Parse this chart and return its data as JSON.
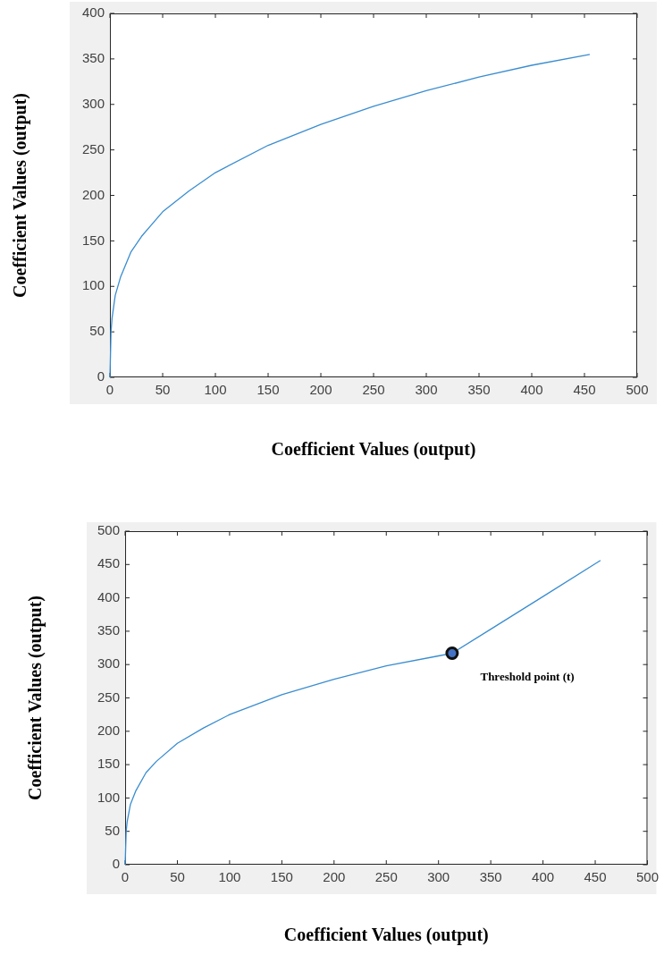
{
  "chart_data": [
    {
      "type": "line",
      "xlabel": "Coefficient Values (output)",
      "ylabel": "Coefficient Values (output)",
      "xlim": [
        0,
        500
      ],
      "xticks": [
        0,
        50,
        100,
        150,
        200,
        250,
        300,
        350,
        400,
        450,
        500
      ],
      "ylim": [
        0,
        400
      ],
      "yticks": [
        0,
        50,
        100,
        150,
        200,
        250,
        300,
        350,
        400
      ],
      "grid": false,
      "legend": false,
      "marker": "none",
      "x": [
        0,
        1,
        2,
        5,
        10,
        20,
        30,
        50,
        75,
        100,
        150,
        200,
        250,
        300,
        350,
        400,
        455
      ],
      "series": [
        {
          "color": "#3a8dd0",
          "values": [
            0,
            50,
            65,
            90,
            110,
            138,
            155,
            182,
            205,
            225,
            255,
            278,
            298,
            315,
            330,
            343,
            355
          ]
        }
      ]
    },
    {
      "type": "line",
      "xlabel": "Coefficient Values (output)",
      "ylabel": "Coefficient Values (output)",
      "xlim": [
        0,
        500
      ],
      "xticks": [
        0,
        50,
        100,
        150,
        200,
        250,
        300,
        350,
        400,
        450,
        500
      ],
      "ylim": [
        0,
        500
      ],
      "yticks": [
        0,
        50,
        100,
        150,
        200,
        250,
        300,
        350,
        400,
        450,
        500
      ],
      "grid": false,
      "legend": false,
      "marker": "none",
      "x": [
        0,
        1,
        2,
        5,
        10,
        20,
        30,
        50,
        75,
        100,
        150,
        200,
        250,
        300,
        313,
        350,
        400,
        455
      ],
      "series": [
        {
          "color": "#3a8dd0",
          "values": [
            0,
            50,
            65,
            90,
            110,
            138,
            155,
            182,
            205,
            225,
            255,
            278,
            298,
            313,
            317,
            353,
            402,
            456
          ]
        },
        {
          "type": "scatter",
          "marker": "circle",
          "color": "#4472c4",
          "x": [
            313
          ],
          "values": [
            317
          ]
        }
      ],
      "annotations": [
        "Threshold point (t)"
      ]
    }
  ]
}
